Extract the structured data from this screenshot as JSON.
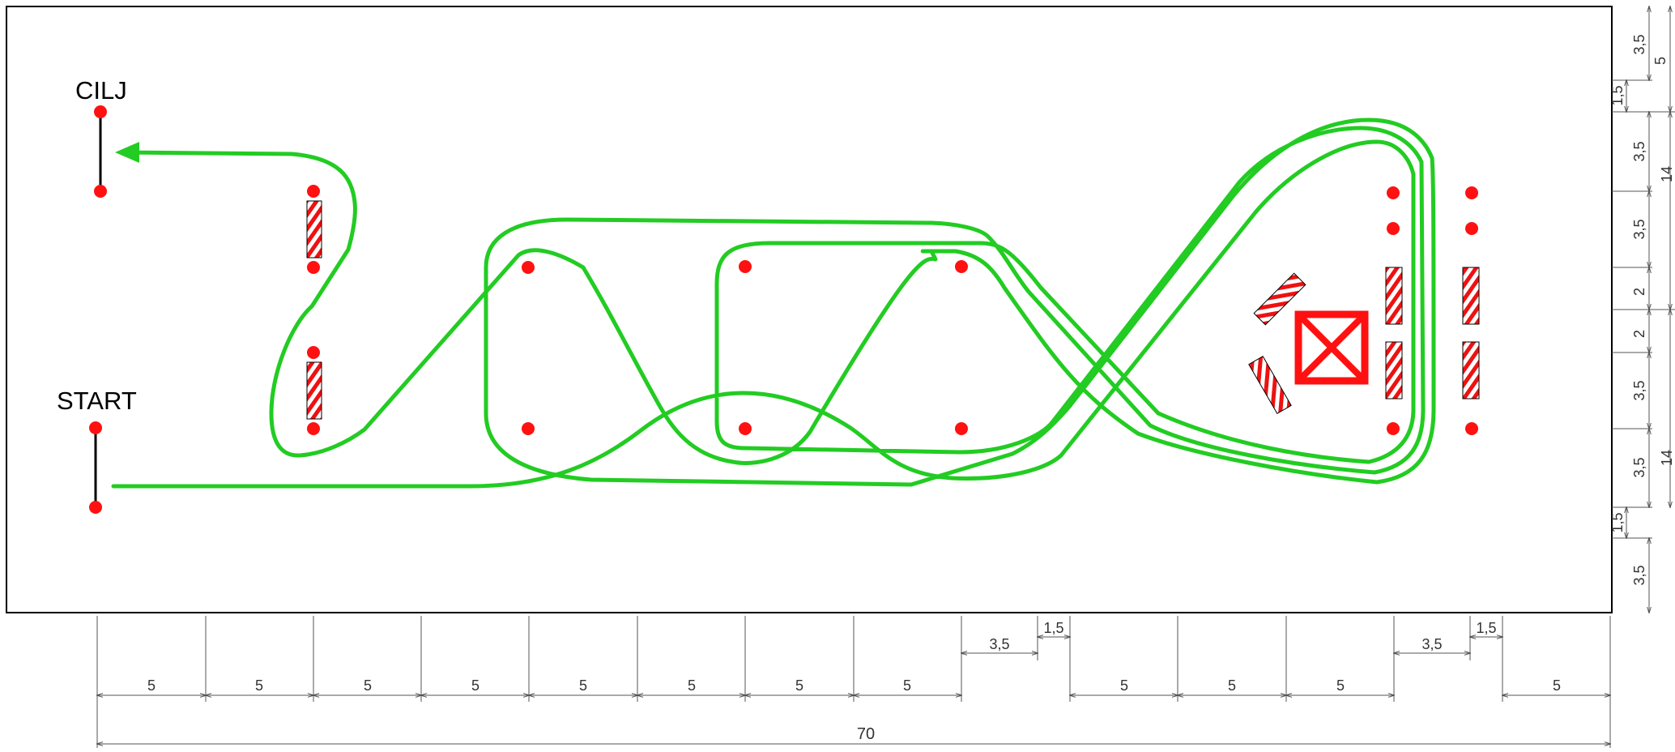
{
  "labels": {
    "start": "START",
    "finish": "CILJ"
  },
  "colors": {
    "path": "#22cc22",
    "cone": "#ff0000",
    "border": "#000000"
  },
  "bottom_dims": {
    "segments": [
      "5",
      "5",
      "5",
      "5",
      "5",
      "5",
      "5",
      "5",
      "5",
      "5",
      "5",
      "5"
    ],
    "offset_a": "3,5",
    "offset_b": "1,5",
    "offset_c": "3,5",
    "offset_d": "1,5",
    "total": "70"
  },
  "right_dims": {
    "d1": "3,5",
    "d2": "1,5",
    "d3": "3,5",
    "d4": "3,5",
    "d5": "2",
    "d6": "2",
    "d7": "3,5",
    "d8": "3,5",
    "d9": "1,5",
    "d10": "3,5",
    "g1": "5",
    "g2": "14",
    "g3": "14"
  }
}
